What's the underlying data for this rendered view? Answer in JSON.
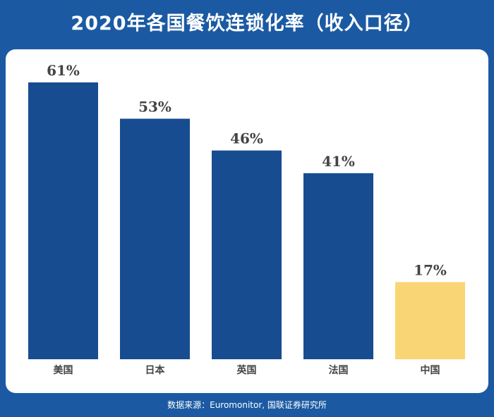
{
  "colors": {
    "background": "#1b5aa3",
    "bar": "#174c91",
    "highlight": "#fad576",
    "label": "#444444",
    "panel": "#ffffff"
  },
  "chart_data": {
    "type": "bar",
    "title": "2020年各国餐饮连锁化率（收入口径）",
    "categories": [
      "美国",
      "日本",
      "英国",
      "法国",
      "中国"
    ],
    "values": [
      61,
      53,
      46,
      41,
      17
    ],
    "data_labels": [
      "61%",
      "53%",
      "46%",
      "41%",
      "17%"
    ],
    "highlight_category": "中国",
    "ylim": [
      0,
      70
    ],
    "grid": false,
    "legend": "none"
  },
  "footer": {
    "source": "数据来源：Euromonitor, 国联证券研究所"
  }
}
